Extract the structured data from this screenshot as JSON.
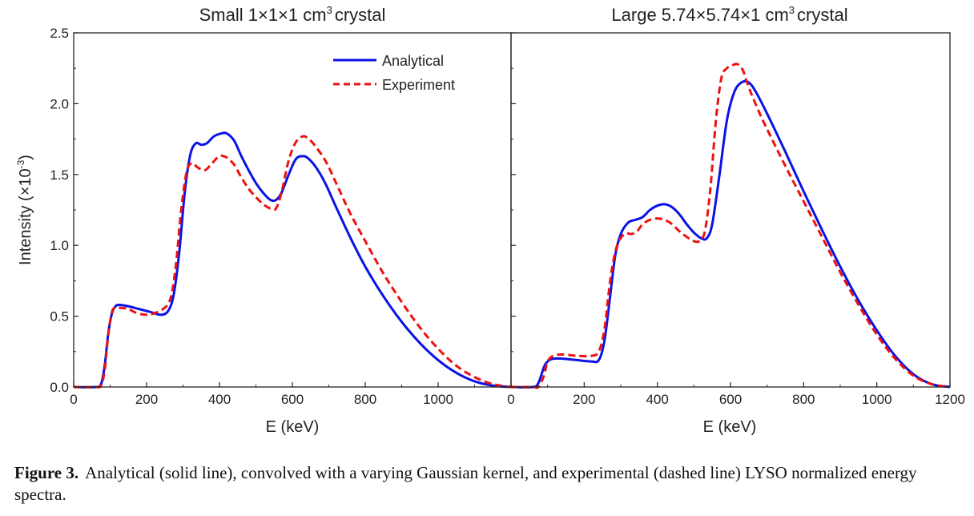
{
  "figure": {
    "ylabel": "Intensity (×10",
    "ylabel_exp": "-3",
    "ylabel_close": ")",
    "caption_label": "Figure 3.",
    "caption_text": "Analytical (solid line), convolved with a varying Gaussian kernel, and experimental (dashed line) LYSO normalized energy spectra."
  },
  "legend": {
    "analytical": "Analytical",
    "experiment": "Experiment"
  },
  "colors": {
    "analytical": "#0a12e6",
    "experiment": "#ee1111"
  },
  "chart_data": [
    {
      "type": "line",
      "title": "Small 1×1×1 cm",
      "title_sup": "3",
      "title_tail": "crystal",
      "xlabel": "E (keV)",
      "ylabel": "Intensity (×10⁻³)",
      "xlim": [
        0,
        1200
      ],
      "ylim": [
        0,
        2.5
      ],
      "xticks": [
        0,
        200,
        400,
        600,
        800,
        1000
      ],
      "yticks": [
        0.0,
        0.5,
        1.0,
        1.5,
        2.0,
        2.5
      ],
      "legend_position": "top-right",
      "series": [
        {
          "name": "Analytical",
          "style": "solid",
          "x": [
            0,
            60,
            75,
            85,
            95,
            105,
            115,
            125,
            150,
            180,
            210,
            240,
            260,
            275,
            290,
            305,
            320,
            335,
            350,
            365,
            385,
            405,
            420,
            440,
            460,
            480,
            500,
            520,
            540,
            555,
            570,
            590,
            610,
            630,
            645,
            665,
            690,
            720,
            760,
            800,
            850,
            900,
            950,
            1000,
            1050,
            1100,
            1150,
            1200
          ],
          "y": [
            0.0,
            0.0,
            0.02,
            0.15,
            0.38,
            0.52,
            0.57,
            0.58,
            0.57,
            0.55,
            0.53,
            0.51,
            0.54,
            0.66,
            0.96,
            1.38,
            1.64,
            1.72,
            1.71,
            1.72,
            1.77,
            1.79,
            1.79,
            1.74,
            1.63,
            1.53,
            1.44,
            1.37,
            1.32,
            1.32,
            1.37,
            1.5,
            1.61,
            1.63,
            1.61,
            1.55,
            1.44,
            1.27,
            1.05,
            0.85,
            0.64,
            0.46,
            0.31,
            0.19,
            0.1,
            0.04,
            0.01,
            0.0
          ]
        },
        {
          "name": "Experiment",
          "style": "dashed",
          "x": [
            0,
            60,
            75,
            85,
            95,
            105,
            115,
            125,
            150,
            175,
            200,
            220,
            245,
            265,
            280,
            295,
            310,
            325,
            340,
            360,
            380,
            400,
            420,
            440,
            460,
            480,
            500,
            520,
            540,
            555,
            570,
            590,
            610,
            630,
            645,
            660,
            690,
            720,
            760,
            800,
            850,
            900,
            950,
            1000,
            1050,
            1100,
            1150,
            1200
          ],
          "y": [
            0.0,
            0.0,
            0.01,
            0.12,
            0.37,
            0.53,
            0.56,
            0.56,
            0.55,
            0.52,
            0.51,
            0.52,
            0.55,
            0.62,
            0.85,
            1.25,
            1.52,
            1.58,
            1.55,
            1.53,
            1.58,
            1.63,
            1.62,
            1.57,
            1.48,
            1.4,
            1.34,
            1.29,
            1.26,
            1.26,
            1.37,
            1.6,
            1.73,
            1.77,
            1.75,
            1.71,
            1.6,
            1.44,
            1.22,
            1.03,
            0.8,
            0.6,
            0.42,
            0.27,
            0.15,
            0.07,
            0.02,
            0.0
          ]
        }
      ]
    },
    {
      "type": "line",
      "title": "Large 5.74×5.74×1 cm",
      "title_sup": "3",
      "title_tail": "crystal",
      "xlabel": "E (keV)",
      "xlim": [
        0,
        1200
      ],
      "ylim": [
        0,
        2.5
      ],
      "xticks": [
        0,
        200,
        400,
        600,
        800,
        1000,
        1200
      ],
      "yticks": [
        0.0,
        0.5,
        1.0,
        1.5,
        2.0,
        2.5
      ],
      "series": [
        {
          "name": "Analytical",
          "style": "solid",
          "x": [
            0,
            60,
            75,
            90,
            100,
            115,
            140,
            180,
            220,
            240,
            255,
            270,
            285,
            300,
            320,
            340,
            360,
            380,
            400,
            420,
            440,
            460,
            480,
            500,
            520,
            535,
            550,
            570,
            590,
            610,
            630,
            650,
            670,
            700,
            750,
            800,
            850,
            900,
            950,
            1000,
            1050,
            1100,
            1150,
            1200
          ],
          "y": [
            0.0,
            0.0,
            0.03,
            0.14,
            0.18,
            0.2,
            0.2,
            0.19,
            0.18,
            0.19,
            0.32,
            0.62,
            0.93,
            1.08,
            1.16,
            1.18,
            1.2,
            1.25,
            1.28,
            1.29,
            1.27,
            1.22,
            1.15,
            1.09,
            1.05,
            1.05,
            1.15,
            1.5,
            1.88,
            2.08,
            2.15,
            2.15,
            2.08,
            1.93,
            1.66,
            1.38,
            1.11,
            0.85,
            0.61,
            0.4,
            0.22,
            0.09,
            0.02,
            0.0
          ]
        },
        {
          "name": "Experiment",
          "style": "dashed",
          "x": [
            0,
            60,
            75,
            90,
            100,
            115,
            140,
            180,
            220,
            240,
            255,
            265,
            275,
            290,
            310,
            330,
            345,
            360,
            380,
            400,
            420,
            440,
            460,
            480,
            500,
            515,
            530,
            545,
            560,
            575,
            590,
            605,
            615,
            625,
            635,
            645,
            660,
            680,
            700,
            750,
            800,
            850,
            900,
            950,
            1000,
            1050,
            1100,
            1150,
            1200
          ],
          "y": [
            0.0,
            0.0,
            0.0,
            0.08,
            0.18,
            0.22,
            0.23,
            0.22,
            0.22,
            0.25,
            0.4,
            0.62,
            0.82,
            1.0,
            1.08,
            1.08,
            1.1,
            1.15,
            1.18,
            1.19,
            1.18,
            1.15,
            1.1,
            1.06,
            1.03,
            1.03,
            1.1,
            1.4,
            1.88,
            2.18,
            2.25,
            2.27,
            2.28,
            2.27,
            2.23,
            2.15,
            2.05,
            1.93,
            1.82,
            1.56,
            1.31,
            1.06,
            0.81,
            0.58,
            0.37,
            0.2,
            0.08,
            0.02,
            0.0
          ]
        }
      ]
    }
  ]
}
